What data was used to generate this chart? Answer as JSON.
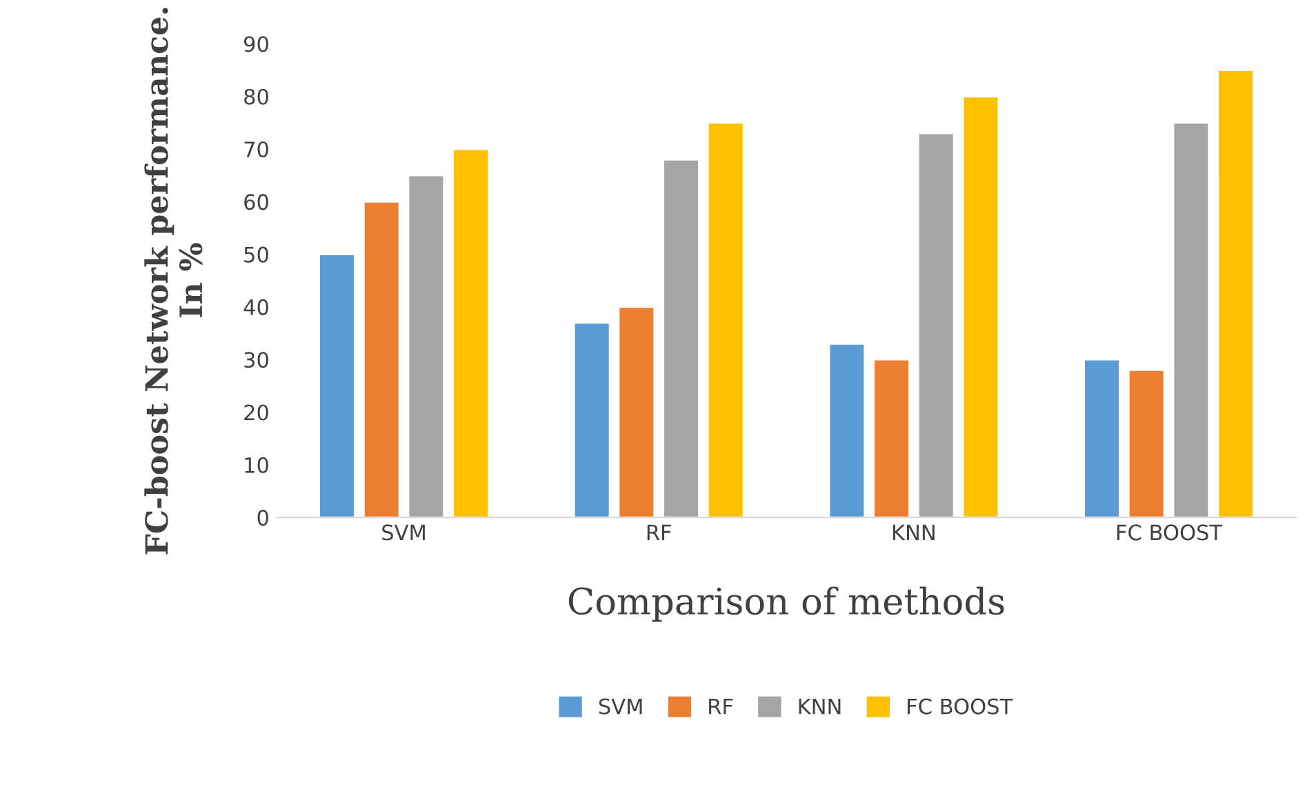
{
  "chart_data": {
    "type": "bar",
    "xlabel": "Comparison of methods",
    "ylabel": "FC-boost Network performance.\nIn %",
    "categories": [
      "SVM",
      "RF",
      "KNN",
      "FC BOOST"
    ],
    "series": [
      {
        "name": "SVM",
        "color": "#5b9bd5",
        "values": [
          50,
          37,
          33,
          30
        ]
      },
      {
        "name": "RF",
        "color": "#ed7d31",
        "values": [
          60,
          40,
          30,
          28
        ]
      },
      {
        "name": "KNN",
        "color": "#a5a5a5",
        "values": [
          65,
          68,
          73,
          75
        ]
      },
      {
        "name": "FC BOOST",
        "color": "#ffc000",
        "values": [
          70,
          75,
          80,
          85
        ]
      }
    ],
    "ylim": [
      0,
      90
    ],
    "yticks": [
      0,
      10,
      20,
      30,
      40,
      50,
      60,
      70,
      80,
      90
    ],
    "grid": false,
    "legend": "bottom"
  }
}
